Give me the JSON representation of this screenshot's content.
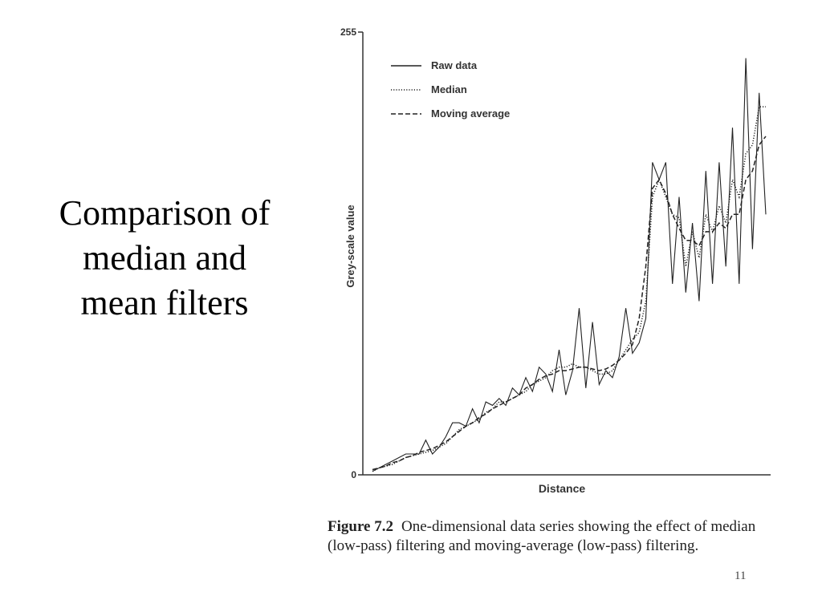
{
  "slide": {
    "title_lines": [
      "Comparison of",
      "median and",
      "mean filters"
    ],
    "page_number": "11"
  },
  "caption": {
    "label": "Figure 7.2",
    "text": "One-dimensional data series showing the effect of median (low-pass) filtering and moving-average (low-pass) filtering."
  },
  "chart_data": {
    "type": "line",
    "xlabel": "Distance",
    "ylabel": "Grey-scale value",
    "ylim": [
      0,
      255
    ],
    "y_ticks": [
      0,
      255
    ],
    "grid": false,
    "legend": "top-left",
    "x": [
      0,
      1,
      2,
      3,
      4,
      5,
      6,
      7,
      8,
      9,
      10,
      11,
      12,
      13,
      14,
      15,
      16,
      17,
      18,
      19,
      20,
      21,
      22,
      23,
      24,
      25,
      26,
      27,
      28,
      29,
      30,
      31,
      32,
      33,
      34,
      35,
      36,
      37,
      38,
      39,
      40,
      41,
      42,
      43,
      44,
      45,
      46,
      47,
      48,
      49,
      50,
      51,
      52,
      53,
      54,
      55,
      56,
      57,
      58,
      59
    ],
    "series": [
      {
        "name": "Raw data",
        "style": "solid",
        "values": [
          2,
          4,
          6,
          8,
          10,
          12,
          12,
          12,
          20,
          12,
          16,
          22,
          30,
          30,
          28,
          38,
          30,
          42,
          40,
          44,
          40,
          50,
          46,
          56,
          48,
          62,
          58,
          48,
          72,
          46,
          60,
          96,
          50,
          88,
          52,
          60,
          56,
          68,
          96,
          70,
          76,
          90,
          180,
          170,
          180,
          110,
          160,
          105,
          145,
          100,
          175,
          110,
          180,
          120,
          200,
          110,
          240,
          130,
          220,
          150
        ]
      },
      {
        "name": "Median",
        "style": "dotted",
        "values": [
          2,
          4,
          5,
          6,
          8,
          10,
          11,
          12,
          13,
          14,
          16,
          18,
          22,
          26,
          28,
          30,
          32,
          36,
          38,
          42,
          42,
          44,
          46,
          48,
          52,
          54,
          56,
          60,
          62,
          62,
          64,
          62,
          62,
          60,
          58,
          58,
          60,
          66,
          72,
          78,
          82,
          100,
          160,
          170,
          160,
          150,
          148,
          120,
          140,
          125,
          150,
          140,
          155,
          145,
          170,
          160,
          185,
          190,
          212,
          212
        ]
      },
      {
        "name": "Moving average",
        "style": "dashed",
        "values": [
          3,
          4,
          5,
          7,
          8,
          10,
          11,
          13,
          14,
          15,
          17,
          19,
          22,
          25,
          28,
          30,
          33,
          35,
          38,
          40,
          42,
          44,
          46,
          50,
          52,
          55,
          57,
          58,
          60,
          60,
          61,
          62,
          62,
          61,
          60,
          61,
          63,
          66,
          70,
          75,
          90,
          120,
          165,
          170,
          162,
          150,
          142,
          135,
          135,
          132,
          140,
          140,
          145,
          142,
          150,
          150,
          170,
          175,
          190,
          195
        ]
      }
    ]
  }
}
